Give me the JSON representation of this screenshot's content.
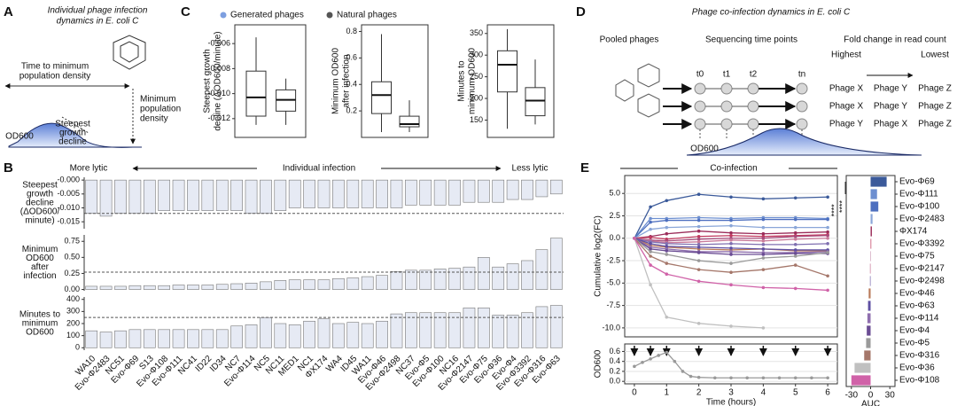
{
  "panel_labels": [
    "A",
    "B",
    "C",
    "D",
    "E"
  ],
  "panel_a": {
    "title": [
      "Individual phage infection",
      "dynamics in E. coli C"
    ],
    "time_label": [
      "Time to minimum",
      "population density"
    ],
    "min_label": [
      "Minimum",
      "population",
      "density"
    ],
    "od_label": "OD600",
    "steepest_label": [
      "Steepest",
      "growth",
      "decline"
    ]
  },
  "panel_b": {
    "left": "More lytic",
    "center": "Individual infection",
    "right": "Less lytic"
  },
  "panel_c": {
    "legend": [
      {
        "name": "Generated phages",
        "color": "#7d9fe0"
      },
      {
        "name": "Natural phages",
        "color": "#555555"
      }
    ]
  },
  "panel_d": {
    "title": "Phage co-infection dynamics in E. coli C",
    "pooled": "Pooled phages",
    "sequencing": "Sequencing time points",
    "fold": "Fold change in read count",
    "highest": "Highest",
    "lowest": "Lowest",
    "times": [
      "t0",
      "t1",
      "t2",
      "tn"
    ],
    "rows": [
      [
        "Phage X",
        "Phage Y",
        "Phage Z"
      ],
      [
        "Phage X",
        "Phage Y",
        "Phage Z"
      ],
      [
        "Phage Y",
        "Phage X",
        "Phage Z"
      ]
    ],
    "od_label": "OD600"
  },
  "panel_e": {
    "header": "Co-infection"
  },
  "chart_data": [
    {
      "type": "box",
      "ylabel": [
        "Steepest growth",
        "decline (ΔOD600/minute)"
      ],
      "ylim": [
        -0.0135,
        -0.0045
      ],
      "yticks": [
        {
          "value": -0.006,
          "label": "-0.006"
        },
        {
          "value": -0.008,
          "label": "-0.008"
        },
        {
          "value": -0.01,
          "label": "-0.010"
        },
        {
          "value": -0.012,
          "label": "-0.012"
        }
      ],
      "boxes": [
        {
          "lo": -0.0125,
          "q1": -0.0118,
          "median": -0.0103,
          "q3": -0.0082,
          "hi": -0.0055
        },
        {
          "lo": -0.0125,
          "q1": -0.0114,
          "median": -0.0105,
          "q3": -0.0097,
          "hi": -0.0088
        }
      ]
    },
    {
      "type": "box",
      "ylabel": [
        "Minimum OD600",
        "after infection"
      ],
      "ylim": [
        0,
        0.85
      ],
      "yticks": [
        0.2,
        0.4,
        0.6,
        0.8
      ],
      "boxes": [
        {
          "lo": 0.04,
          "q1": 0.18,
          "median": 0.32,
          "q3": 0.42,
          "hi": 0.78
        },
        {
          "lo": 0.04,
          "q1": 0.08,
          "median": 0.1,
          "q3": 0.16,
          "hi": 0.28
        }
      ]
    },
    {
      "type": "box",
      "ylabel": [
        "Minutes to",
        "minimum OD600"
      ],
      "ylim": [
        110,
        370
      ],
      "yticks": [
        150,
        200,
        250,
        300,
        350
      ],
      "boxes": [
        {
          "lo": 130,
          "q1": 215,
          "median": 278,
          "q3": 310,
          "hi": 360
        },
        {
          "lo": 140,
          "q1": 160,
          "median": 195,
          "q3": 225,
          "hi": 290
        }
      ]
    },
    {
      "type": "bar",
      "ylabel": [
        "Steepest",
        "growth",
        "decline",
        "(ΔOD600/",
        "minute)"
      ],
      "ylim": [
        -0.0175,
        0.001
      ],
      "yticks": [
        {
          "value": 0,
          "label": "-0.000"
        },
        {
          "value": -0.005,
          "label": "-0.005"
        },
        {
          "value": -0.01,
          "label": "-0.010"
        },
        {
          "value": -0.015,
          "label": "-0.015"
        }
      ],
      "reference": -0.012,
      "color": "#e6eaf4",
      "values": [
        -0.012,
        -0.013,
        -0.012,
        -0.012,
        -0.012,
        -0.011,
        -0.011,
        -0.011,
        -0.011,
        -0.011,
        -0.011,
        -0.012,
        -0.012,
        -0.011,
        -0.01,
        -0.01,
        -0.01,
        -0.01,
        -0.01,
        -0.01,
        -0.01,
        -0.01,
        -0.009,
        -0.009,
        -0.009,
        -0.009,
        -0.008,
        -0.008,
        -0.008,
        -0.007,
        -0.007,
        -0.006,
        -0.005
      ]
    },
    {
      "type": "bar",
      "ylabel": [
        "Minimum",
        "OD600",
        "after",
        "infection"
      ],
      "ylim": [
        -0.02,
        0.85
      ],
      "yticks": [
        {
          "value": 0,
          "label": "0.00"
        },
        {
          "value": 0.25,
          "label": "0.25"
        },
        {
          "value": 0.5,
          "label": "0.50"
        },
        {
          "value": 0.75,
          "label": "0.75"
        }
      ],
      "reference": 0.27,
      "color": "#e6eaf4",
      "values": [
        0.05,
        0.05,
        0.05,
        0.06,
        0.06,
        0.06,
        0.07,
        0.07,
        0.07,
        0.08,
        0.09,
        0.1,
        0.12,
        0.14,
        0.15,
        0.15,
        0.15,
        0.17,
        0.18,
        0.2,
        0.22,
        0.28,
        0.3,
        0.3,
        0.32,
        0.33,
        0.35,
        0.5,
        0.35,
        0.4,
        0.45,
        0.62,
        0.8
      ]
    },
    {
      "type": "bar",
      "ylabel": [
        "Minutes to",
        "minimum",
        "OD600"
      ],
      "ylim": [
        -20,
        420
      ],
      "yticks": [
        0,
        100,
        200,
        300,
        400
      ],
      "reference": 250,
      "color": "#e6eaf4",
      "values": [
        140,
        130,
        140,
        150,
        150,
        150,
        150,
        150,
        150,
        150,
        180,
        190,
        250,
        200,
        190,
        220,
        240,
        200,
        210,
        200,
        220,
        280,
        290,
        290,
        290,
        290,
        330,
        330,
        270,
        270,
        290,
        340,
        350
      ],
      "categories": [
        "WA10",
        "Evo-Φ2483",
        "NC51",
        "Evo-Φ69",
        "S13",
        "Evo-Φ108",
        "Evo-Φ111",
        "NC41",
        "ID22",
        "ID34",
        "NC7",
        "Evo-Φ114",
        "NC5",
        "NC11",
        "MED1",
        "NC1",
        "ΦX174",
        "WA4",
        "ID45",
        "WA11",
        "Evo-Φ46",
        "Evo-Φ2498",
        "NC37",
        "Evo-Φ5",
        "Evo-Φ100",
        "NC16",
        "Evo-Φ2147",
        "Evo-Φ75",
        "Evo-Φ36",
        "Evo-Φ4",
        "Evo-Φ3392",
        "Evo-Φ316",
        "Evo-Φ63"
      ]
    },
    {
      "type": "line",
      "ylabel": [
        "Cumulative log2(FC)"
      ],
      "x": [
        0,
        0.5,
        1,
        2,
        3,
        4,
        5,
        6
      ],
      "xlim": [
        -0.3,
        6.3
      ],
      "ylim": [
        -11,
        7
      ],
      "yticks": [
        {
          "value": -10,
          "label": "-10.0"
        },
        {
          "value": -7.5,
          "label": "-7.5"
        },
        {
          "value": -5,
          "label": "-5.0"
        },
        {
          "value": -2.5,
          "label": "-2.5"
        },
        {
          "value": 0,
          "label": "0.0"
        },
        {
          "value": 2.5,
          "label": "2.5"
        },
        {
          "value": 5,
          "label": "5.0"
        }
      ],
      "series": [
        {
          "color": "#3b5a9a",
          "values": [
            0,
            3.5,
            4.2,
            4.9,
            4.6,
            4.4,
            4.5,
            4.6
          ]
        },
        {
          "color": "#6d8fd0",
          "values": [
            0,
            2.2,
            2.2,
            2.3,
            2.2,
            2.3,
            2.3,
            2.2
          ]
        },
        {
          "color": "#4d6fbf",
          "values": [
            0,
            1.8,
            2.0,
            2.0,
            2.0,
            2.1,
            2.1,
            2.1
          ]
        },
        {
          "color": "#8aa6d8",
          "values": [
            0,
            1.0,
            1.2,
            1.3,
            1.4,
            1.2,
            1.2,
            1.2
          ]
        },
        {
          "color": "#9b2d5a",
          "values": [
            0,
            0.2,
            0.5,
            0.8,
            0.6,
            0.5,
            0.6,
            0.7
          ]
        },
        {
          "color": "#c0395e",
          "values": [
            0,
            0.1,
            -0.1,
            0.2,
            0.3,
            0.2,
            0.3,
            0.4
          ]
        },
        {
          "color": "#a64c7c",
          "values": [
            0,
            -0.2,
            -0.3,
            -0.1,
            0,
            0,
            0.2,
            0.3
          ]
        },
        {
          "color": "#c97b9b",
          "values": [
            0,
            -0.3,
            -0.5,
            -0.4,
            -0.2,
            -0.3,
            -0.1,
            0
          ]
        },
        {
          "color": "#7f6fb0",
          "values": [
            0,
            -0.4,
            -0.6,
            -0.7,
            -0.6,
            -0.7,
            -0.7,
            -0.6
          ]
        },
        {
          "color": "#b97a5a",
          "values": [
            0,
            -0.8,
            -1.0,
            -1.2,
            -1.3,
            -1.2,
            -1.4,
            -1.4
          ]
        },
        {
          "color": "#5e4fa2",
          "values": [
            0,
            -0.6,
            -0.9,
            -1.0,
            -1.1,
            -1.2,
            -1.3,
            -1.3
          ]
        },
        {
          "color": "#8f6fae",
          "values": [
            0,
            -1.0,
            -1.2,
            -1.5,
            -1.5,
            -1.6,
            -1.6,
            -1.5
          ]
        },
        {
          "color": "#6a4c93",
          "values": [
            0,
            -1.2,
            -1.4,
            -1.6,
            -1.8,
            -1.8,
            -1.7,
            -1.7
          ]
        },
        {
          "color": "#9a9a9a",
          "values": [
            0,
            -1.5,
            -1.8,
            -2.5,
            -2.8,
            -2.2,
            -2.0,
            -1.6
          ]
        },
        {
          "color": "#a5776a",
          "values": [
            0,
            -2.0,
            -2.8,
            -3.5,
            -3.8,
            -3.5,
            -3.0,
            -4.2
          ]
        },
        {
          "color": "#c0c0c0",
          "values": [
            0,
            -5.2,
            -8.8,
            -9.5,
            -9.8,
            -10.0,
            null,
            null
          ]
        },
        {
          "color": "#d062a8",
          "values": [
            0,
            -3.0,
            -4.0,
            -4.8,
            -5.2,
            -5.5,
            -5.6,
            -5.8
          ]
        }
      ]
    },
    {
      "type": "line",
      "ylabel": [
        "OD600"
      ],
      "xlabel": "Time (hours)",
      "x": [
        0,
        0.25,
        0.5,
        0.75,
        1,
        1.25,
        1.5,
        1.75,
        2,
        2.5,
        3,
        3.5,
        4,
        4.5,
        5,
        5.5,
        6
      ],
      "xlim": [
        -0.3,
        6.3
      ],
      "xticks": [
        0,
        1,
        2,
        3,
        4,
        5,
        6
      ],
      "ylim": [
        -0.05,
        0.75
      ],
      "yticks": [
        {
          "value": 0,
          "label": "0.0"
        },
        {
          "value": 0.2,
          "label": "0.2"
        },
        {
          "value": 0.4,
          "label": "0.4"
        },
        {
          "value": 0.6,
          "label": "0.6"
        }
      ],
      "series": [
        {
          "color": "#999999",
          "values": [
            0.3,
            0.38,
            0.45,
            0.52,
            0.58,
            0.4,
            0.2,
            0.1,
            0.08,
            0.07,
            0.07,
            0.07,
            0.07,
            0.07,
            0.07,
            0.07,
            0.07
          ]
        }
      ],
      "sampling_times": [
        0,
        0.5,
        1,
        2,
        3,
        4,
        5,
        6
      ]
    },
    {
      "type": "hbar",
      "xlabel": "AUC",
      "xlim": [
        -38,
        38
      ],
      "xticks": [
        -30,
        0,
        30
      ],
      "significance": [
        "****",
        "****"
      ],
      "categories": [
        "Evo-Φ69",
        "Evo-Φ111",
        "Evo-Φ100",
        "Evo-Φ2483",
        "ΦX174",
        "Evo-Φ3392",
        "Evo-Φ75",
        "Evo-Φ2147",
        "Evo-Φ2498",
        "Evo-Φ46",
        "Evo-Φ63",
        "Evo-Φ114",
        "Evo-Φ4",
        "Evo-Φ5",
        "Evo-Φ316",
        "Evo-Φ36",
        "Evo-Φ108"
      ],
      "values": [
        25,
        10,
        12,
        3,
        2,
        1,
        0.5,
        -1,
        -1,
        -3,
        -4,
        -5,
        -6,
        -7,
        -10,
        -25,
        -30
      ],
      "colors": [
        "#3b5a9a",
        "#6d8fd0",
        "#4d6fbf",
        "#8aa6d8",
        "#9b2d5a",
        "#c0395e",
        "#a64c7c",
        "#c97b9b",
        "#7f6fb0",
        "#b97a5a",
        "#5e4fa2",
        "#8f6fae",
        "#6a4c93",
        "#9a9a9a",
        "#a5776a",
        "#c0c0c0",
        "#d062a8"
      ]
    }
  ]
}
